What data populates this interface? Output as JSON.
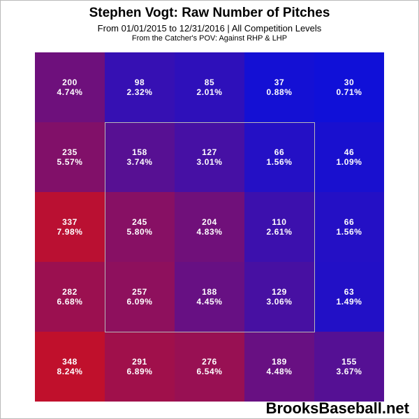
{
  "chart_data": {
    "type": "heatmap",
    "title": "Stephen Vogt: Raw Number of Pitches",
    "subtitle": "From 01/01/2015 to 12/31/2016 | All Competition Levels",
    "note": "From the Catcher's POV:  Against RHP & LHP",
    "rows": 5,
    "cols": 5,
    "cells": [
      [
        {
          "count": "200",
          "pct": "4.74%"
        },
        {
          "count": "98",
          "pct": "2.32%"
        },
        {
          "count": "85",
          "pct": "2.01%"
        },
        {
          "count": "37",
          "pct": "0.88%"
        },
        {
          "count": "30",
          "pct": "0.71%"
        }
      ],
      [
        {
          "count": "235",
          "pct": "5.57%"
        },
        {
          "count": "158",
          "pct": "3.74%"
        },
        {
          "count": "127",
          "pct": "3.01%"
        },
        {
          "count": "66",
          "pct": "1.56%"
        },
        {
          "count": "46",
          "pct": "1.09%"
        }
      ],
      [
        {
          "count": "337",
          "pct": "7.98%"
        },
        {
          "count": "245",
          "pct": "5.80%"
        },
        {
          "count": "204",
          "pct": "4.83%"
        },
        {
          "count": "110",
          "pct": "2.61%"
        },
        {
          "count": "66",
          "pct": "1.56%"
        }
      ],
      [
        {
          "count": "282",
          "pct": "6.68%"
        },
        {
          "count": "257",
          "pct": "6.09%"
        },
        {
          "count": "188",
          "pct": "4.45%"
        },
        {
          "count": "129",
          "pct": "3.06%"
        },
        {
          "count": "63",
          "pct": "1.49%"
        }
      ],
      [
        {
          "count": "348",
          "pct": "8.24%"
        },
        {
          "count": "291",
          "pct": "6.89%"
        },
        {
          "count": "276",
          "pct": "6.54%"
        },
        {
          "count": "189",
          "pct": "4.48%"
        },
        {
          "count": "155",
          "pct": "3.67%"
        }
      ]
    ],
    "color_low": "#1010d8",
    "color_high": "#c0102c",
    "strike_zone": "inner 3x3 cells outlined"
  },
  "watermark": "BrooksBaseball.net"
}
